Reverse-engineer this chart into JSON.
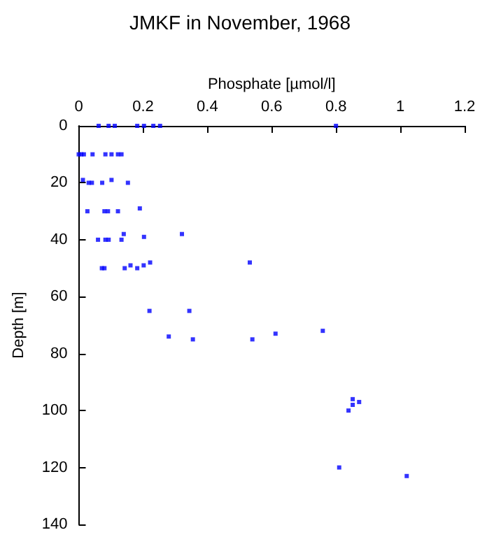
{
  "chart_data": {
    "type": "scatter",
    "title": "JMKF in November, 1968",
    "xlabel": "Phosphate [µmol/l]",
    "ylabel": "Depth [m]",
    "color": "#0000ff",
    "marker": "square",
    "grid": false,
    "x": [
      0.062,
      0.093,
      0.112,
      0.182,
      0.203,
      0.232,
      0.253,
      0.8,
      0,
      0.008,
      0.016,
      0.043,
      0.083,
      0.102,
      0.122,
      0.133,
      0.013,
      0.102,
      0.031,
      0.041,
      0.073,
      0.153,
      0.027,
      0.08,
      0.091,
      0.122,
      0.19,
      0.06,
      0.083,
      0.093,
      0.133,
      0.203,
      0.14,
      0.321,
      0.072,
      0.08,
      0.143,
      0.161,
      0.182,
      0.202,
      0.222,
      0.532,
      0.22,
      0.344,
      0.28,
      0.355,
      0.54,
      0.612,
      0.759,
      0.852,
      0.872,
      0.852,
      0.839,
      0.81,
      1.02
    ],
    "values": [
      0,
      0,
      0,
      0,
      0,
      0,
      0,
      0,
      10,
      10,
      10,
      10,
      10,
      10,
      10,
      10,
      19,
      19,
      20,
      20,
      20,
      20,
      30,
      30,
      30,
      30,
      29,
      40,
      40,
      40,
      40,
      39,
      38,
      38,
      50,
      50,
      50,
      49,
      50,
      49,
      48,
      48,
      65,
      65,
      74,
      75,
      75,
      73,
      72,
      96,
      97,
      98,
      100,
      120,
      123
    ],
    "xlim": [
      0,
      1.2
    ],
    "xticks": [
      0,
      0.2,
      0.4,
      0.6,
      0.8,
      1,
      1.2
    ],
    "ylim": [
      140,
      0
    ],
    "yticks": [
      0,
      20,
      40,
      60,
      80,
      100,
      120,
      140
    ]
  }
}
